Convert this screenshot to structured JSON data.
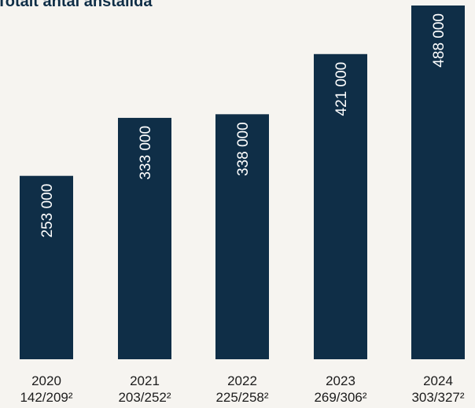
{
  "chart_data": {
    "type": "bar",
    "title": "Totalt antal anställda",
    "categories": [
      "2020",
      "2021",
      "2022",
      "2023",
      "2024"
    ],
    "subcategories": [
      "142/209²",
      "203/252²",
      "225/258²",
      "269/306²",
      "303/327²"
    ],
    "values": [
      253000,
      333000,
      338000,
      421000,
      488000
    ],
    "value_labels": [
      "253 000",
      "333 000",
      "338 000",
      "421 000",
      "488 000"
    ],
    "xlabel": "",
    "ylabel": "",
    "grid": false,
    "legend": "none",
    "bar_color": "#0f2e47",
    "value_label_color": "#ffffff"
  }
}
